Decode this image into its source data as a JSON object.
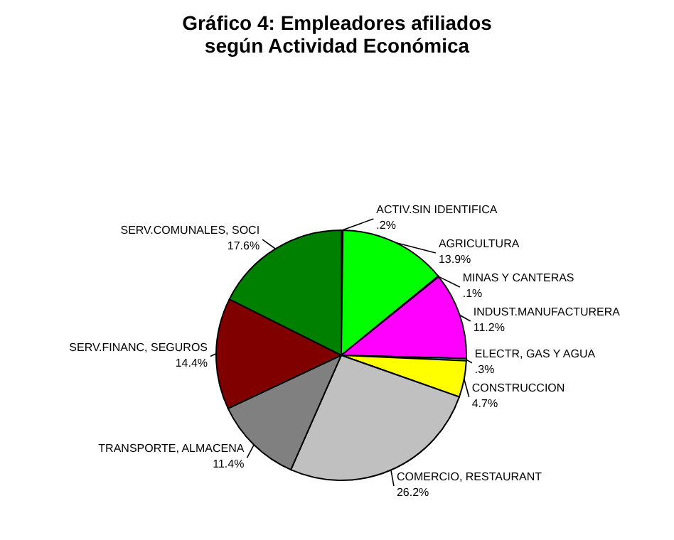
{
  "chart_data": {
    "type": "pie",
    "title": [
      "Gráfico 4: Empleadores afiliados",
      "según Actividad Económica"
    ],
    "categories": [
      "ACTIV.SIN IDENTIFICA",
      "AGRICULTURA",
      "MINAS Y CANTERAS",
      "INDUST.MANUFACTURERA",
      "ELECTR, GAS Y AGUA",
      "CONSTRUCCION",
      "COMERCIO, RESTAURANT",
      "TRANSPORTE, ALMACENA",
      "SERV.FINANC, SEGUROS",
      "SERV.COMUNALES, SOCI"
    ],
    "values": [
      0.2,
      13.9,
      0.1,
      11.2,
      0.3,
      4.7,
      26.2,
      11.4,
      14.4,
      17.6
    ],
    "value_labels": [
      ".2%",
      "13.9%",
      ".1%",
      "11.2%",
      ".3%",
      "4.7%",
      "26.2%",
      "11.4%",
      "14.4%",
      "17.6%"
    ],
    "colors": [
      "#000080",
      "#00ff00",
      "#0000ff",
      "#ff00ff",
      "#00ffff",
      "#ffff00",
      "#c0c0c0",
      "#808080",
      "#800000",
      "#008000"
    ],
    "legend": false
  }
}
